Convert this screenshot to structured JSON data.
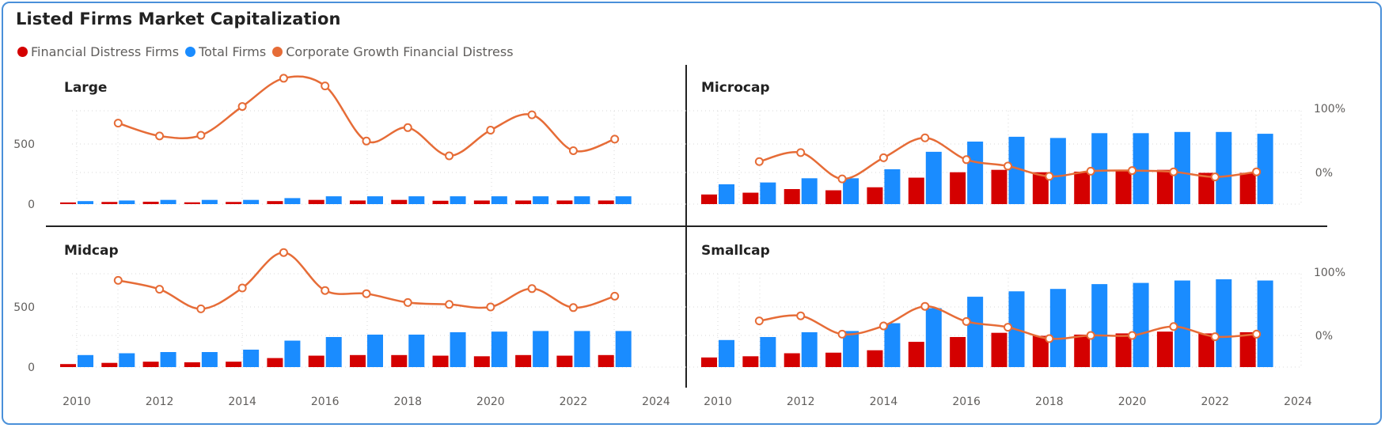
{
  "title": "Listed Firms Market Capitalization",
  "legend": [
    {
      "label": "Financial Distress Firms",
      "color": "#d40000"
    },
    {
      "label": "Total Firms",
      "color": "#1a8cff"
    },
    {
      "label": "Corporate Growth Financial Distress",
      "color": "#e66c37"
    }
  ],
  "chart_data": {
    "type": "bar",
    "layout": "small-multiples-2x2",
    "x_ticks": [
      "2010",
      "2012",
      "2014",
      "2016",
      "2018",
      "2020",
      "2022",
      "2024"
    ],
    "left_y_ticks": [
      "0",
      "500"
    ],
    "right_y_ticks": [
      "0%",
      "100%"
    ],
    "grid": true,
    "years": [
      2010,
      2011,
      2012,
      2013,
      2014,
      2015,
      2016,
      2017,
      2018,
      2019,
      2020,
      2021,
      2022,
      2023
    ],
    "panels": [
      {
        "name": "Large",
        "series": [
          {
            "name": "Financial Distress Firms",
            "type": "bar",
            "values": [
              14,
              18,
              20,
              15,
              18,
              25,
              35,
              30,
              35,
              28,
              30,
              30,
              30,
              30
            ]
          },
          {
            "name": "Total Firms",
            "type": "bar",
            "values": [
              25,
              30,
              35,
              35,
              35,
              50,
              65,
              65,
              65,
              65,
              65,
              65,
              65,
              65
            ]
          },
          {
            "name": "Corporate Growth Financial Distress",
            "type": "line",
            "values": [
              null,
              0.77,
              0.57,
              0.58,
              1.03,
              1.47,
              1.35,
              0.49,
              0.7,
              0.26,
              0.66,
              0.9,
              0.34,
              0.52
            ]
          }
        ]
      },
      {
        "name": "Microcap",
        "series": [
          {
            "name": "Financial Distress Firms",
            "type": "bar",
            "values": [
              80,
              95,
              125,
              115,
              140,
              220,
              265,
              285,
              265,
              270,
              275,
              285,
              260,
              260
            ]
          },
          {
            "name": "Total Firms",
            "type": "bar",
            "values": [
              165,
              180,
              215,
              215,
              290,
              435,
              520,
              560,
              550,
              590,
              590,
              600,
              600,
              585
            ]
          },
          {
            "name": "Corporate Growth Financial Distress",
            "type": "line",
            "values": [
              null,
              0.17,
              0.31,
              -0.1,
              0.23,
              0.54,
              0.2,
              0.1,
              -0.06,
              0.02,
              0.03,
              0.01,
              -0.07,
              0.01
            ]
          }
        ]
      },
      {
        "name": "Midcap",
        "series": [
          {
            "name": "Financial Distress Firms",
            "type": "bar",
            "values": [
              25,
              35,
              45,
              40,
              45,
              75,
              95,
              100,
              100,
              95,
              90,
              100,
              95,
              100
            ]
          },
          {
            "name": "Total Firms",
            "type": "bar",
            "values": [
              100,
              115,
              125,
              125,
              145,
              220,
              250,
              270,
              270,
              290,
              295,
              300,
              300,
              300
            ]
          },
          {
            "name": "Corporate Growth Financial Distress",
            "type": "line",
            "values": [
              null,
              0.87,
              0.73,
              0.42,
              0.75,
              1.31,
              0.71,
              0.66,
              0.52,
              0.49,
              0.45,
              0.74,
              0.44,
              0.62
            ]
          }
        ]
      },
      {
        "name": "Smallcap",
        "series": [
          {
            "name": "Financial Distress Firms",
            "type": "bar",
            "values": [
              80,
              90,
              115,
              120,
              140,
              210,
              250,
              285,
              260,
              270,
              280,
              295,
              280,
              290
            ]
          },
          {
            "name": "Total Firms",
            "type": "bar",
            "values": [
              225,
              250,
              290,
              300,
              365,
              490,
              585,
              630,
              650,
              690,
              700,
              720,
              730,
              720
            ]
          },
          {
            "name": "Corporate Growth Financial Distress",
            "type": "line",
            "values": [
              null,
              0.23,
              0.31,
              0.02,
              0.15,
              0.46,
              0.22,
              0.13,
              -0.05,
              0.0,
              0.0,
              0.14,
              -0.02,
              0.02
            ]
          }
        ]
      }
    ]
  }
}
